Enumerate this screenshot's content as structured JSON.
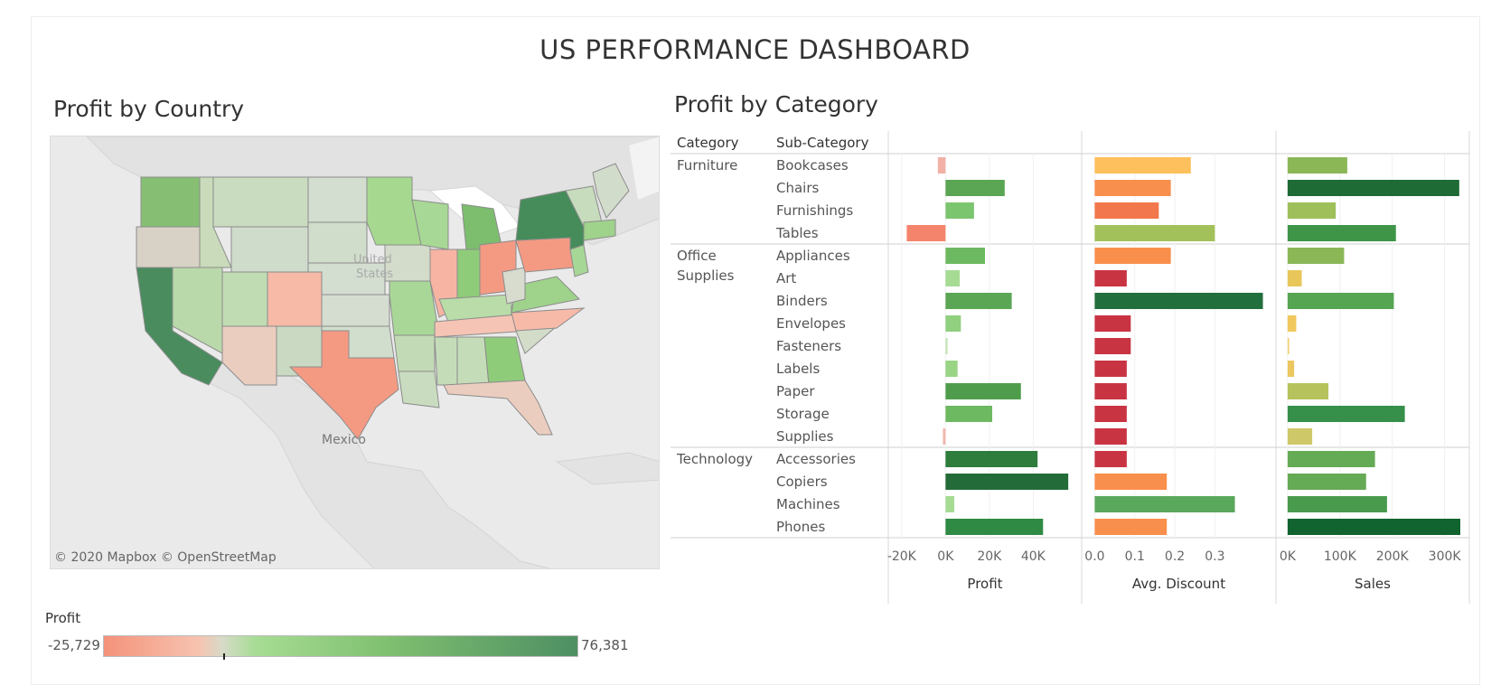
{
  "dashboard": {
    "title": "US PERFORMANCE DASHBOARD"
  },
  "map_panel": {
    "title": "Profit by Country",
    "labels": {
      "country_us": "United States",
      "mexico": "Mexico"
    },
    "credit": "© 2020 Mapbox © OpenStreetMap"
  },
  "legend": {
    "title": "Profit",
    "min": "-25,729",
    "max": "76,381"
  },
  "category_panel": {
    "title": "Profit by Category"
  },
  "chart_data": {
    "type": "bar",
    "headers": {
      "category": "Category",
      "subcategory": "Sub-Category"
    },
    "groups": [
      {
        "category": "Furniture",
        "subcategories": [
          "Bookcases",
          "Chairs",
          "Furnishings",
          "Tables"
        ]
      },
      {
        "category": "Office Supplies",
        "subcategories": [
          "Appliances",
          "Art",
          "Binders",
          "Envelopes",
          "Fasteners",
          "Labels",
          "Paper",
          "Storage",
          "Supplies"
        ]
      },
      {
        "category": "Technology",
        "subcategories": [
          "Accessories",
          "Copiers",
          "Machines",
          "Phones"
        ]
      }
    ],
    "series": [
      {
        "name": "Profit",
        "xlim": [
          -22000,
          58000
        ],
        "ticks": [
          -20000,
          0,
          20000,
          40000
        ],
        "tick_labels": [
          "-20K",
          "0K",
          "20K",
          "40K"
        ],
        "values": [
          -3500,
          27000,
          13000,
          -17700,
          18000,
          6500,
          30200,
          7000,
          950,
          5500,
          34400,
          21300,
          -1200,
          42000,
          56000,
          4000,
          44500
        ],
        "colors": [
          "#f2b1a6",
          "#5aa654",
          "#7cc56f",
          "#f4846c",
          "#6db961",
          "#a6db94",
          "#5aa654",
          "#90d07f",
          "#c6e6b8",
          "#99d585",
          "#4f9d4c",
          "#6db961",
          "#f0b8ad",
          "#2e7d3c",
          "#236b38",
          "#a6db94",
          "#2f8a43"
        ]
      },
      {
        "name": "Avg. Discount",
        "xlim": [
          -0.01,
          0.43
        ],
        "ticks": [
          0,
          0.1,
          0.2,
          0.3
        ],
        "tick_labels": [
          "0.0",
          "0.1",
          "0.2",
          "0.3"
        ],
        "values": [
          0.24,
          0.19,
          0.16,
          0.3,
          0.19,
          0.08,
          0.42,
          0.09,
          0.09,
          0.08,
          0.08,
          0.08,
          0.08,
          0.08,
          0.18,
          0.35,
          0.18
        ],
        "colors": [
          "#fdc05c",
          "#f98f4c",
          "#f2774c",
          "#a3c15a",
          "#f98f4c",
          "#c93443",
          "#226f3e",
          "#c93443",
          "#c93443",
          "#c93443",
          "#c93443",
          "#c93443",
          "#c93443",
          "#c93443",
          "#f98f4c",
          "#5aa85c",
          "#f98f4c"
        ]
      },
      {
        "name": "Sales",
        "xlim": [
          -5000,
          330000
        ],
        "ticks": [
          0,
          100000,
          200000,
          300000
        ],
        "tick_labels": [
          "0K",
          "100K",
          "200K",
          "300K"
        ],
        "values": [
          114000,
          328000,
          92000,
          207000,
          108000,
          27000,
          203000,
          16500,
          3000,
          12500,
          78000,
          224000,
          47000,
          167000,
          150000,
          190000,
          330000
        ],
        "colors": [
          "#8bb757",
          "#1e6b35",
          "#9ebf5a",
          "#3e9548",
          "#8bb757",
          "#e8c65a",
          "#55a552",
          "#f0c85e",
          "#f4d27a",
          "#ecc760",
          "#b6c35c",
          "#37904a",
          "#cfc868",
          "#65aa54",
          "#65aa54",
          "#4a9a4e",
          "#116430"
        ]
      }
    ]
  }
}
